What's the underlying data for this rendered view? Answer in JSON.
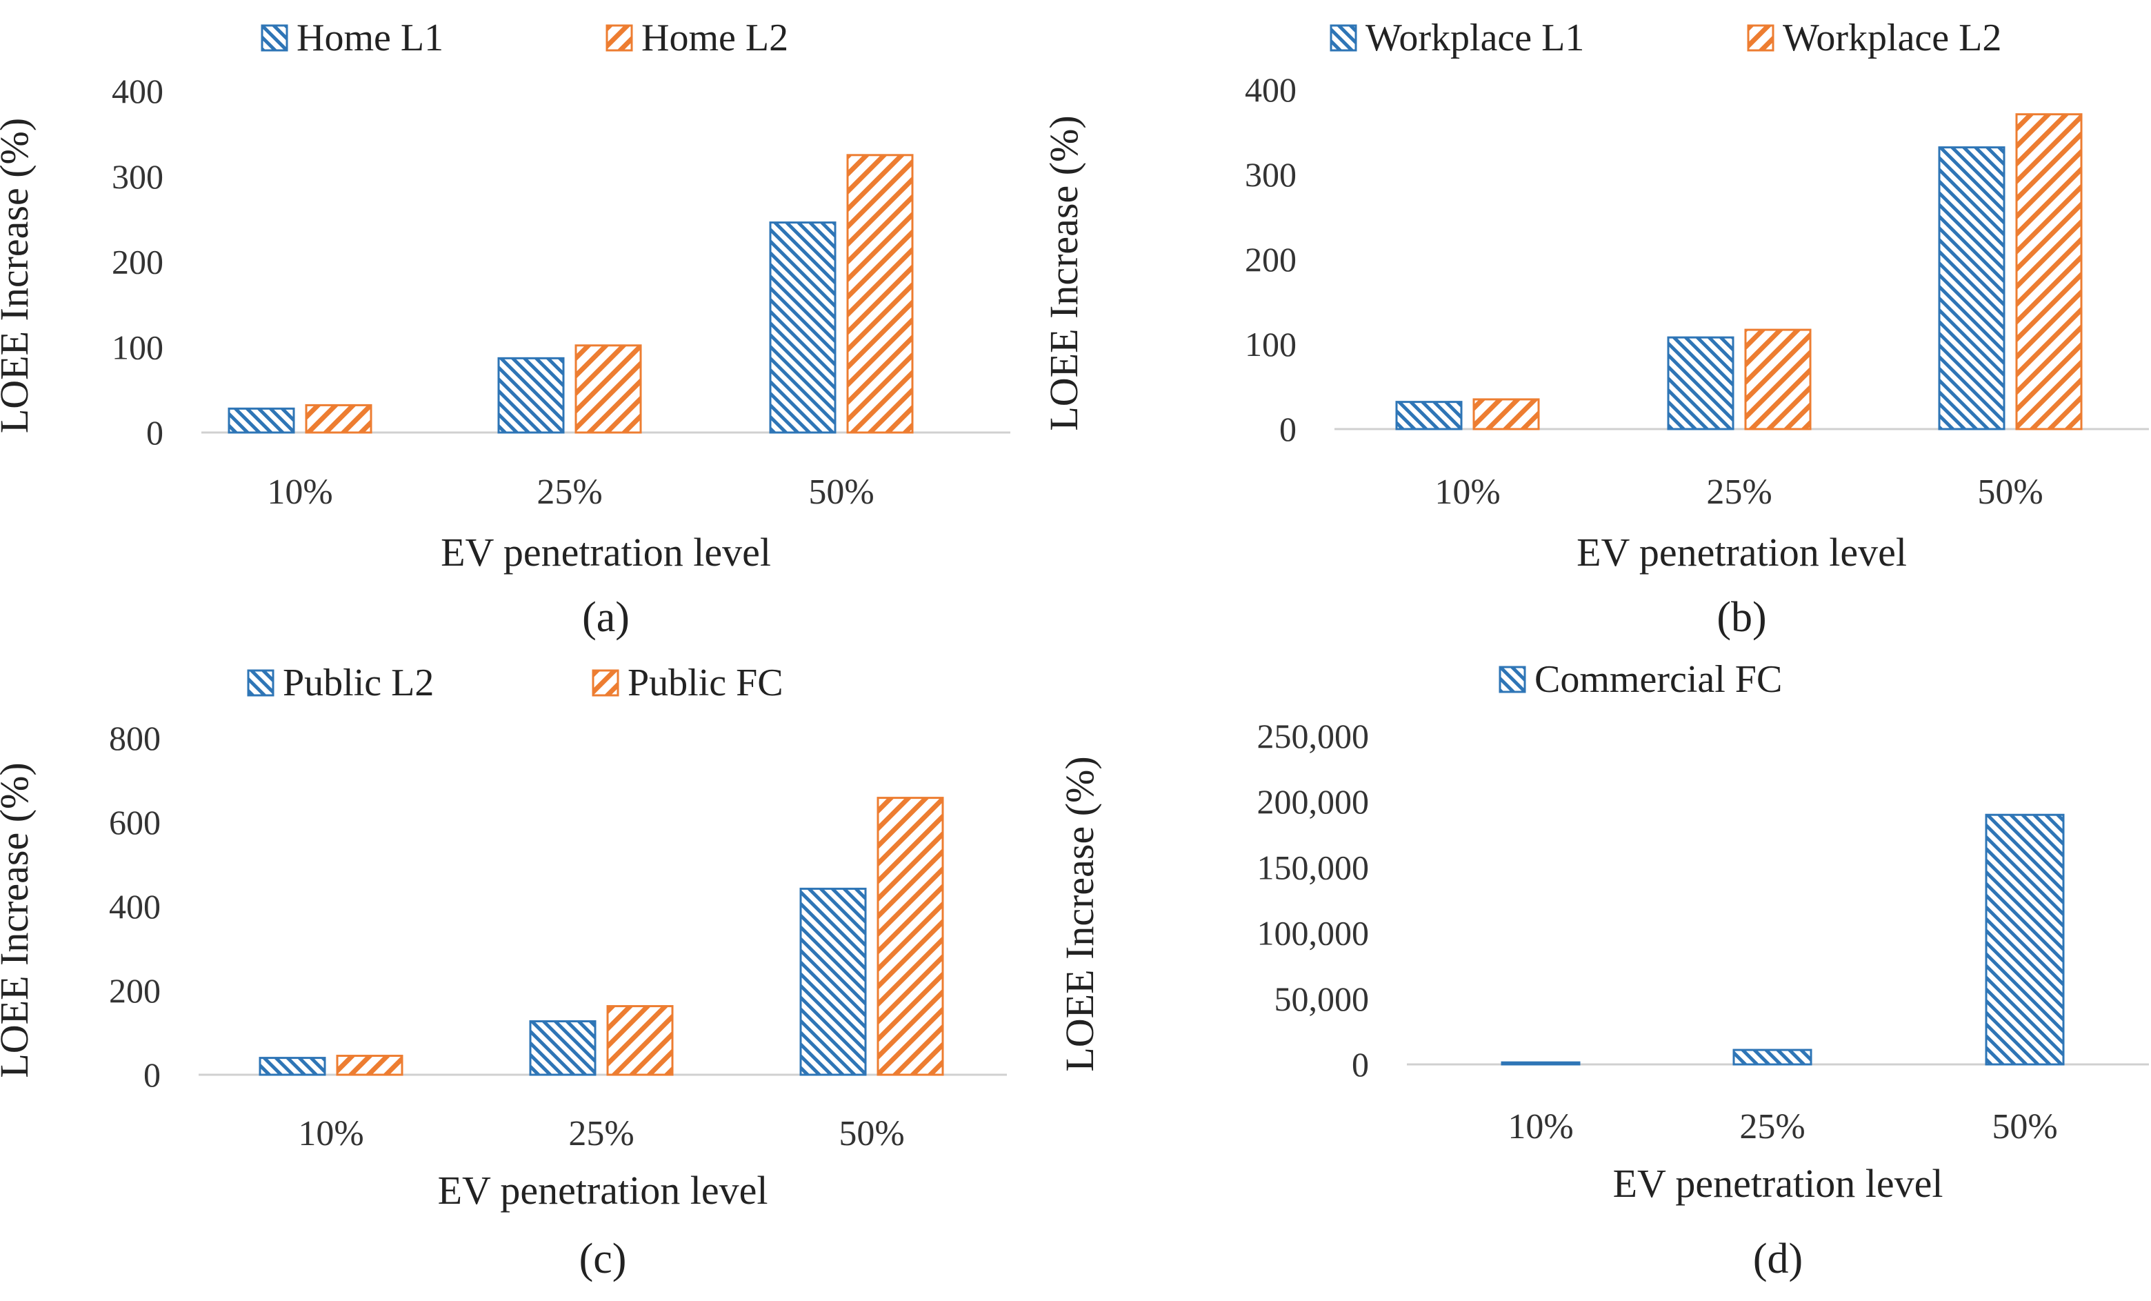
{
  "colors": {
    "blue": "#2E75B6",
    "orange": "#ED7D31"
  },
  "chart_data": [
    {
      "type": "bar",
      "panel_label": "(a)",
      "categories": [
        "10%",
        "25%",
        "50%"
      ],
      "series": [
        {
          "name": "Home L1",
          "values": [
            28,
            87,
            246
          ]
        },
        {
          "name": "Home L2",
          "values": [
            32,
            102,
            325
          ]
        }
      ],
      "xlabel": "EV penetration level",
      "ylabel": "LOEE Increase (%)",
      "ylim": [
        0,
        400
      ],
      "yticks": [
        "0",
        "100",
        "200",
        "300",
        "400"
      ],
      "grid": false,
      "legend": "top"
    },
    {
      "type": "bar",
      "panel_label": "(b)",
      "categories": [
        "10%",
        "25%",
        "50%"
      ],
      "series": [
        {
          "name": "Workplace L1",
          "values": [
            32,
            108,
            332
          ]
        },
        {
          "name": "Workplace L2",
          "values": [
            35,
            117,
            371
          ]
        }
      ],
      "xlabel": "EV penetration level",
      "ylabel": "LOEE Increase (%)",
      "ylim": [
        0,
        400
      ],
      "yticks": [
        "0",
        "100",
        "200",
        "300",
        "400"
      ],
      "grid": false,
      "legend": "top"
    },
    {
      "type": "bar",
      "panel_label": "(c)",
      "categories": [
        "10%",
        "25%",
        "50%"
      ],
      "series": [
        {
          "name": "Public L2",
          "values": [
            40,
            127,
            442
          ]
        },
        {
          "name": "Public FC",
          "values": [
            45,
            163,
            658
          ]
        }
      ],
      "xlabel": "EV penetration level",
      "ylabel": "LOEE Increase (%)",
      "ylim": [
        0,
        800
      ],
      "yticks": [
        "0",
        "200",
        "400",
        "600",
        "800"
      ],
      "grid": false,
      "legend": "top"
    },
    {
      "type": "bar",
      "panel_label": "(d)",
      "categories": [
        "10%",
        "25%",
        "50%"
      ],
      "series": [
        {
          "name": "Commercial FC",
          "values": [
            1500,
            11000,
            190000
          ]
        }
      ],
      "xlabel": "EV penetration level",
      "ylabel": "LOEE Increase (%)",
      "ylim": [
        0,
        250000
      ],
      "yticks": [
        "0",
        "50,000",
        "100,000",
        "150,000",
        "200,000",
        "250,000"
      ],
      "grid": false,
      "legend": "top"
    }
  ]
}
